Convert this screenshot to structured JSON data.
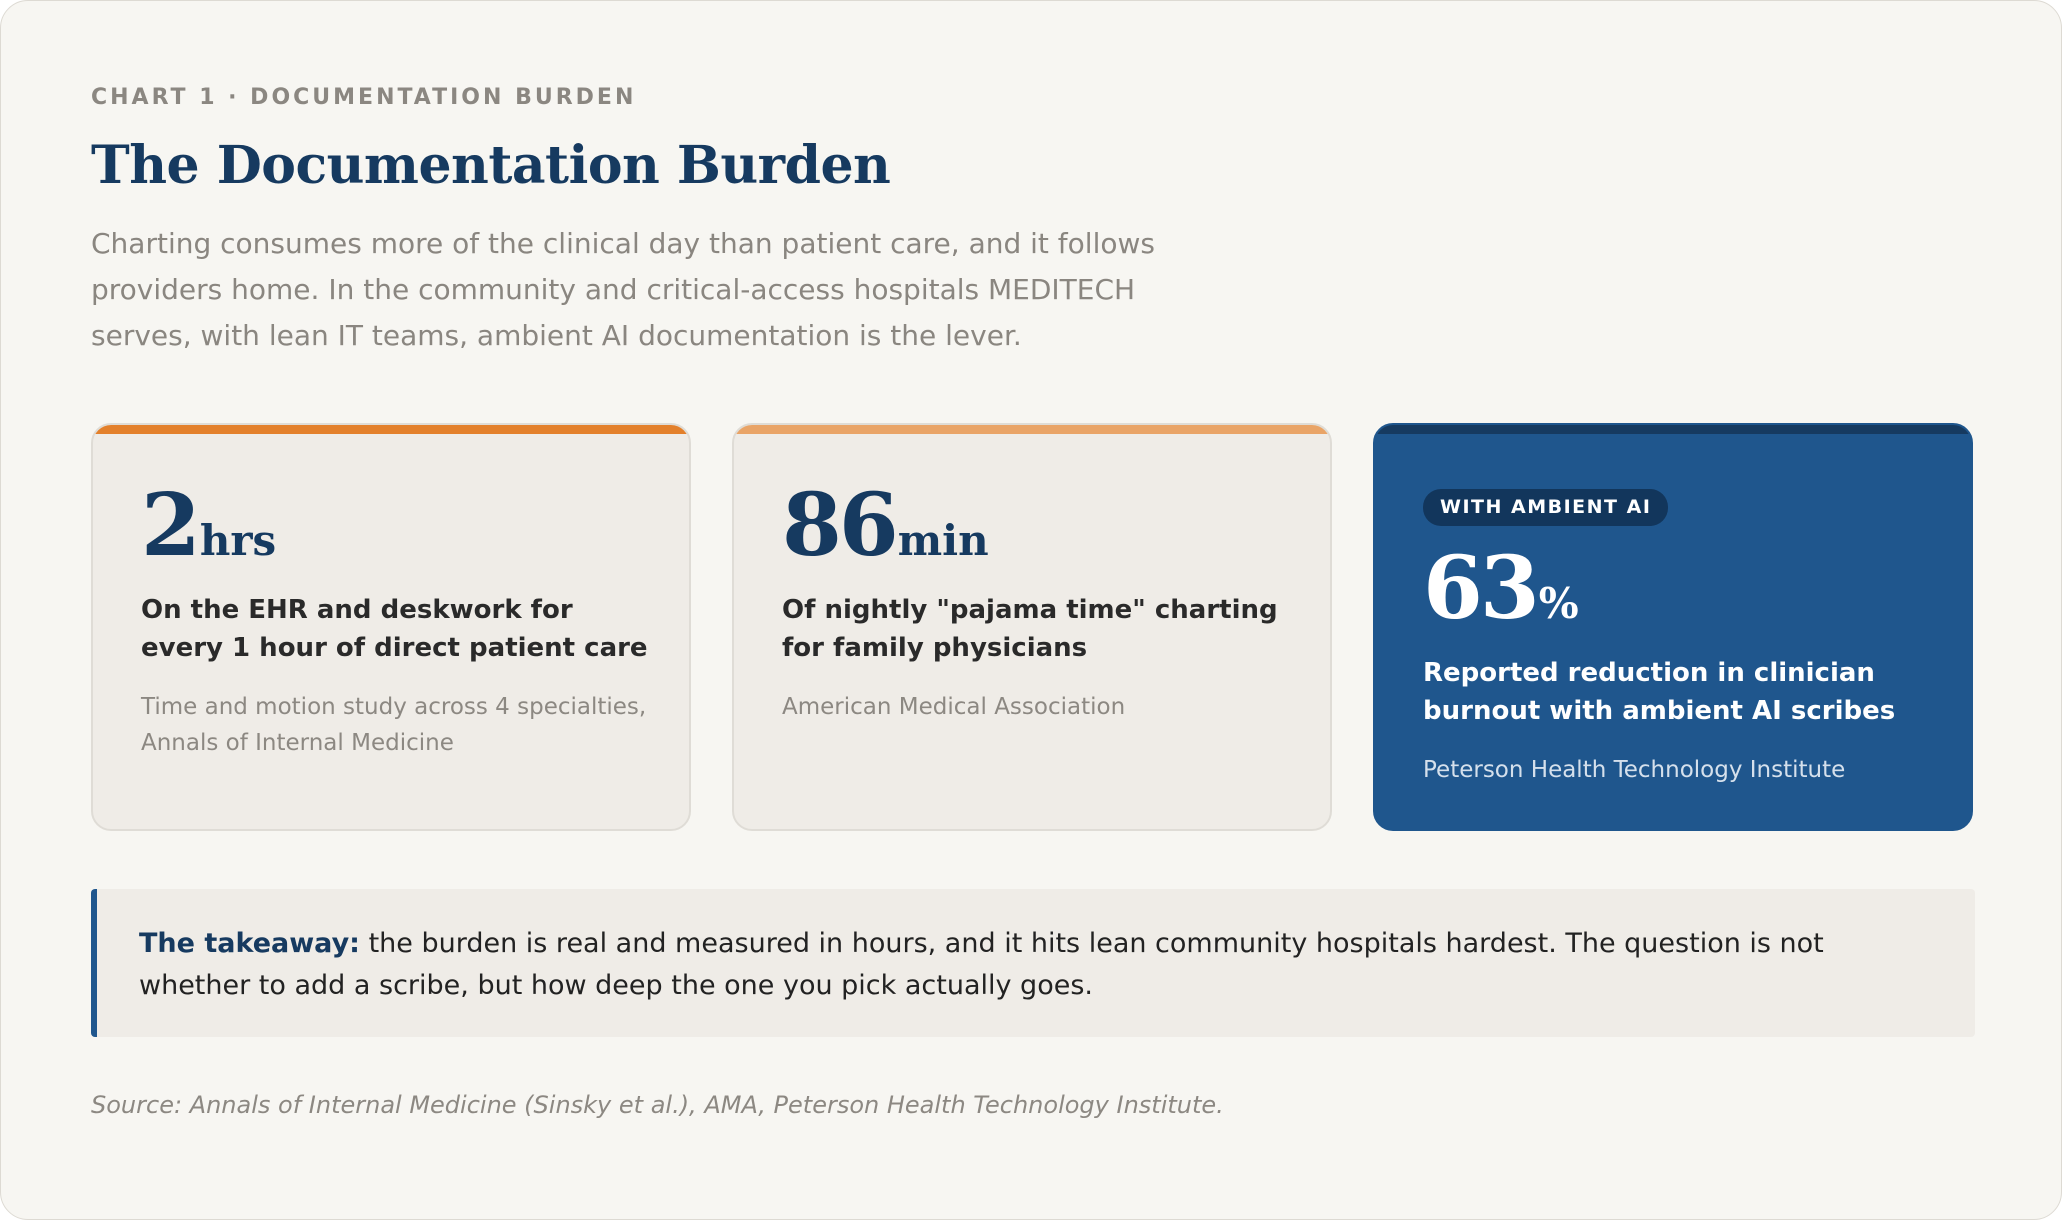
{
  "header": {
    "eyebrow": "CHART 1 · DOCUMENTATION BURDEN",
    "title": "The Documentation Burden",
    "subtitle": "Charting consumes more of the clinical day than patient care, and it follows providers home. In the community and critical-access hospitals MEDITECH serves, with lean IT teams, ambient AI documentation is the lever."
  },
  "stats": [
    {
      "value": "2",
      "unit": "hrs",
      "label": "On the EHR and deskwork for every 1 hour of direct patient care",
      "source": "Time and motion study across 4 specialties, Annals of Internal Medicine",
      "accent": "#e3802b"
    },
    {
      "value": "86",
      "unit": "min",
      "label": "Of nightly \"pajama time\" charting for family physicians",
      "source": "American Medical Association",
      "accent": "#e9a467"
    },
    {
      "badge": "WITH AMBIENT AI",
      "value": "63",
      "unit": "%",
      "label": "Reported reduction in clinician burnout with ambient AI scribes",
      "source": "Peterson Health Technology Institute",
      "accent": "#163a60"
    }
  ],
  "takeaway": {
    "lead": "The takeaway:",
    "text": " the burden is real and measured in hours, and it hits lean community hospitals hardest. The question is not whether to add a scribe, but how deep the one you pick actually goes."
  },
  "source_line": "Source: Annals of Internal Medicine (Sinsky et al.), AMA, Peterson Health Technology Institute.",
  "colors": {
    "navy": "#163a60",
    "blue": "#1f568d",
    "orange": "#e3802b",
    "light_orange": "#e9a467",
    "card_bg": "#efece7",
    "page_bg": "#f7f6f2"
  }
}
